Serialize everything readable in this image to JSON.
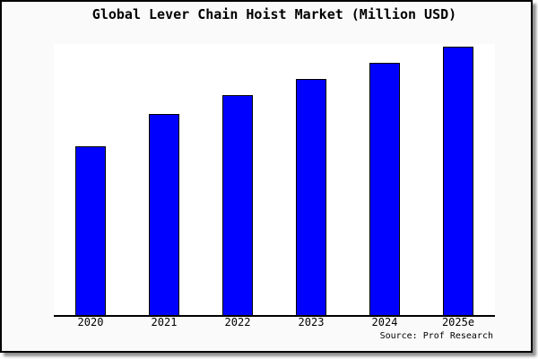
{
  "chart_data": {
    "type": "bar",
    "title": "Global Lever Chain Hoist Market (Million USD)",
    "categories": [
      "2020",
      "2021",
      "2022",
      "2023",
      "2024",
      "2025e"
    ],
    "values": [
      63,
      75,
      82,
      88,
      94,
      100
    ],
    "value_scale_note": "No y-axis tick labels are shown in the chart; values are relative estimates read from bar heights with 2025e = 100.",
    "ylim": [
      0,
      101
    ],
    "xlabel": "",
    "ylabel": "",
    "grid": false,
    "legend": "none",
    "bar_color": "#0000ff",
    "bar_edge_color": "#000000",
    "figure_background": "#fafafa",
    "plot_background": "#ffffff",
    "frame_border_color": "#000000",
    "source_note": "Source: Prof Research"
  }
}
